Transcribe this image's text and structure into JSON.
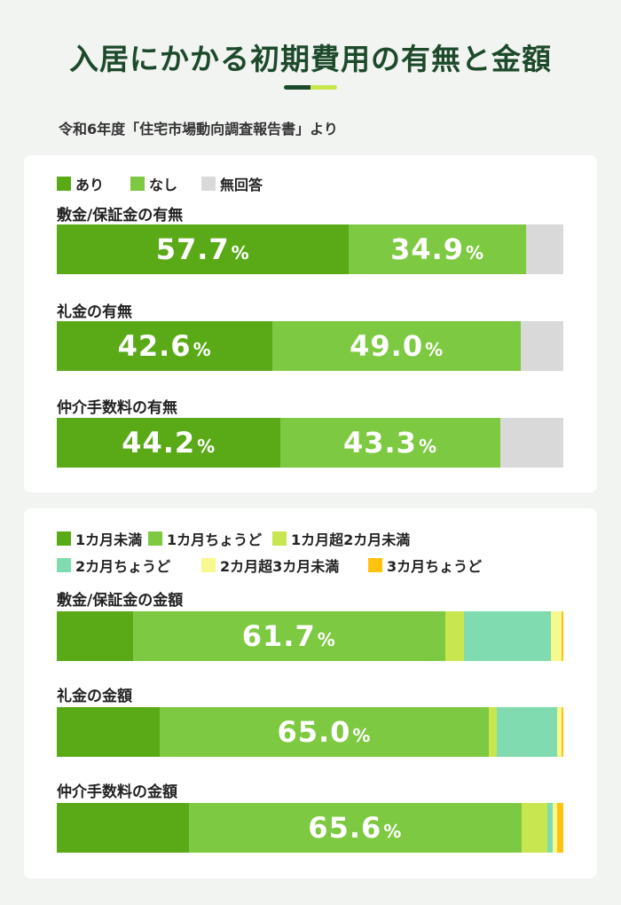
{
  "title": "入居にかかる初期費用の有無と金額",
  "source": "令和6年度「住宅市場動向調査報告書」より",
  "percent_sign": "%",
  "chart_data": [
    {
      "type": "bar",
      "orientation": "horizontal",
      "stacked": true,
      "legend_position": "top-left",
      "xlim": [
        0,
        100
      ],
      "categories": [
        "敷金/保証金の有無",
        "礼金の有無",
        "仲介手数料の有無"
      ],
      "series": [
        {
          "name": "あり",
          "color": "#5aaa18",
          "values": [
            57.7,
            42.6,
            44.2
          ],
          "labels": [
            "57.7",
            "42.6",
            "44.2"
          ]
        },
        {
          "name": "なし",
          "color": "#7ec942",
          "values": [
            34.9,
            49.0,
            43.3
          ],
          "labels": [
            "34.9",
            "49.0",
            "43.3"
          ]
        },
        {
          "name": "無回答",
          "color": "#d9d9d9",
          "values": [
            7.4,
            8.4,
            12.5
          ],
          "labels": [
            "",
            "",
            ""
          ]
        }
      ]
    },
    {
      "type": "bar",
      "orientation": "horizontal",
      "stacked": true,
      "legend_position": "top-left",
      "xlim": [
        0,
        100
      ],
      "categories": [
        "敷金/保証金の金額",
        "礼金の金額",
        "仲介手数料の金額"
      ],
      "series": [
        {
          "name": "1カ月未満",
          "color": "#5aaa18",
          "values": [
            15.0,
            20.3,
            26.1
          ],
          "labels": [
            "",
            "",
            ""
          ]
        },
        {
          "name": "1カ月ちょうど",
          "color": "#7ec942",
          "values": [
            61.7,
            65.0,
            65.6
          ],
          "labels": [
            "61.7",
            "65.0",
            "65.6"
          ]
        },
        {
          "name": "1カ月超2カ月未満",
          "color": "#c8e650",
          "values": [
            3.7,
            1.6,
            5.2
          ],
          "labels": [
            "",
            "",
            ""
          ]
        },
        {
          "name": "2カ月ちょうど",
          "color": "#80dbb0",
          "values": [
            17.2,
            11.8,
            1.0
          ],
          "labels": [
            "",
            "",
            ""
          ]
        },
        {
          "name": "2カ月超3カ月未満",
          "color": "#f8f890",
          "values": [
            2.1,
            1.0,
            0.9
          ],
          "labels": [
            "",
            "",
            ""
          ]
        },
        {
          "name": "3カ月ちょうど",
          "color": "#ffc20e",
          "values": [
            0.3,
            0.3,
            1.2
          ],
          "labels": [
            "",
            "",
            ""
          ]
        }
      ]
    }
  ]
}
